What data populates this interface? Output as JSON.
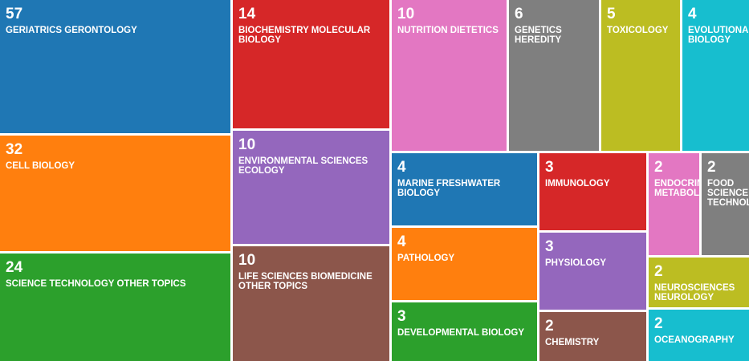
{
  "chart_data": {
    "type": "treemap",
    "items": [
      {
        "label": "GERIATRICS GERONTOLOGY",
        "value": 57,
        "color": "#1f77b4"
      },
      {
        "label": "CELL BIOLOGY",
        "value": 32,
        "color": "#ff7f0e"
      },
      {
        "label": "SCIENCE TECHNOLOGY OTHER TOPICS",
        "value": 24,
        "color": "#2ca02c"
      },
      {
        "label": "BIOCHEMISTRY MOLECULAR BIOLOGY",
        "value": 14,
        "color": "#d62728"
      },
      {
        "label": "ENVIRONMENTAL SCIENCES ECOLOGY",
        "value": 10,
        "color": "#9467bd"
      },
      {
        "label": "LIFE SCIENCES BIOMEDICINE OTHER TOPICS",
        "value": 10,
        "color": "#8c564b"
      },
      {
        "label": "NUTRITION DIETETICS",
        "value": 10,
        "color": "#e377c2"
      },
      {
        "label": "GENETICS HEREDITY",
        "value": 6,
        "color": "#7f7f7f"
      },
      {
        "label": "TOXICOLOGY",
        "value": 5,
        "color": "#bcbd22"
      },
      {
        "label": "EVOLUTIONARY BIOLOGY",
        "value": 4,
        "color": "#17becf"
      },
      {
        "label": "MARINE FRESHWATER BIOLOGY",
        "value": 4,
        "color": "#1f77b4"
      },
      {
        "label": "PATHOLOGY",
        "value": 4,
        "color": "#ff7f0e"
      },
      {
        "label": "DEVELOPMENTAL BIOLOGY",
        "value": 3,
        "color": "#2ca02c"
      },
      {
        "label": "IMMUNOLOGY",
        "value": 3,
        "color": "#d62728"
      },
      {
        "label": "PHYSIOLOGY",
        "value": 3,
        "color": "#9467bd"
      },
      {
        "label": "CHEMISTRY",
        "value": 2,
        "color": "#8c564b"
      },
      {
        "label": "ENDOCRINOLOGY METABOLISM",
        "value": 2,
        "color": "#e377c2"
      },
      {
        "label": "FOOD SCIENCE TECHNOLOGY",
        "value": 2,
        "color": "#7f7f7f"
      },
      {
        "label": "NEUROSCIENCES NEUROLOGY",
        "value": 2,
        "color": "#bcbd22"
      },
      {
        "label": "OCEANOGRAPHY",
        "value": 2,
        "color": "#17becf"
      }
    ]
  }
}
